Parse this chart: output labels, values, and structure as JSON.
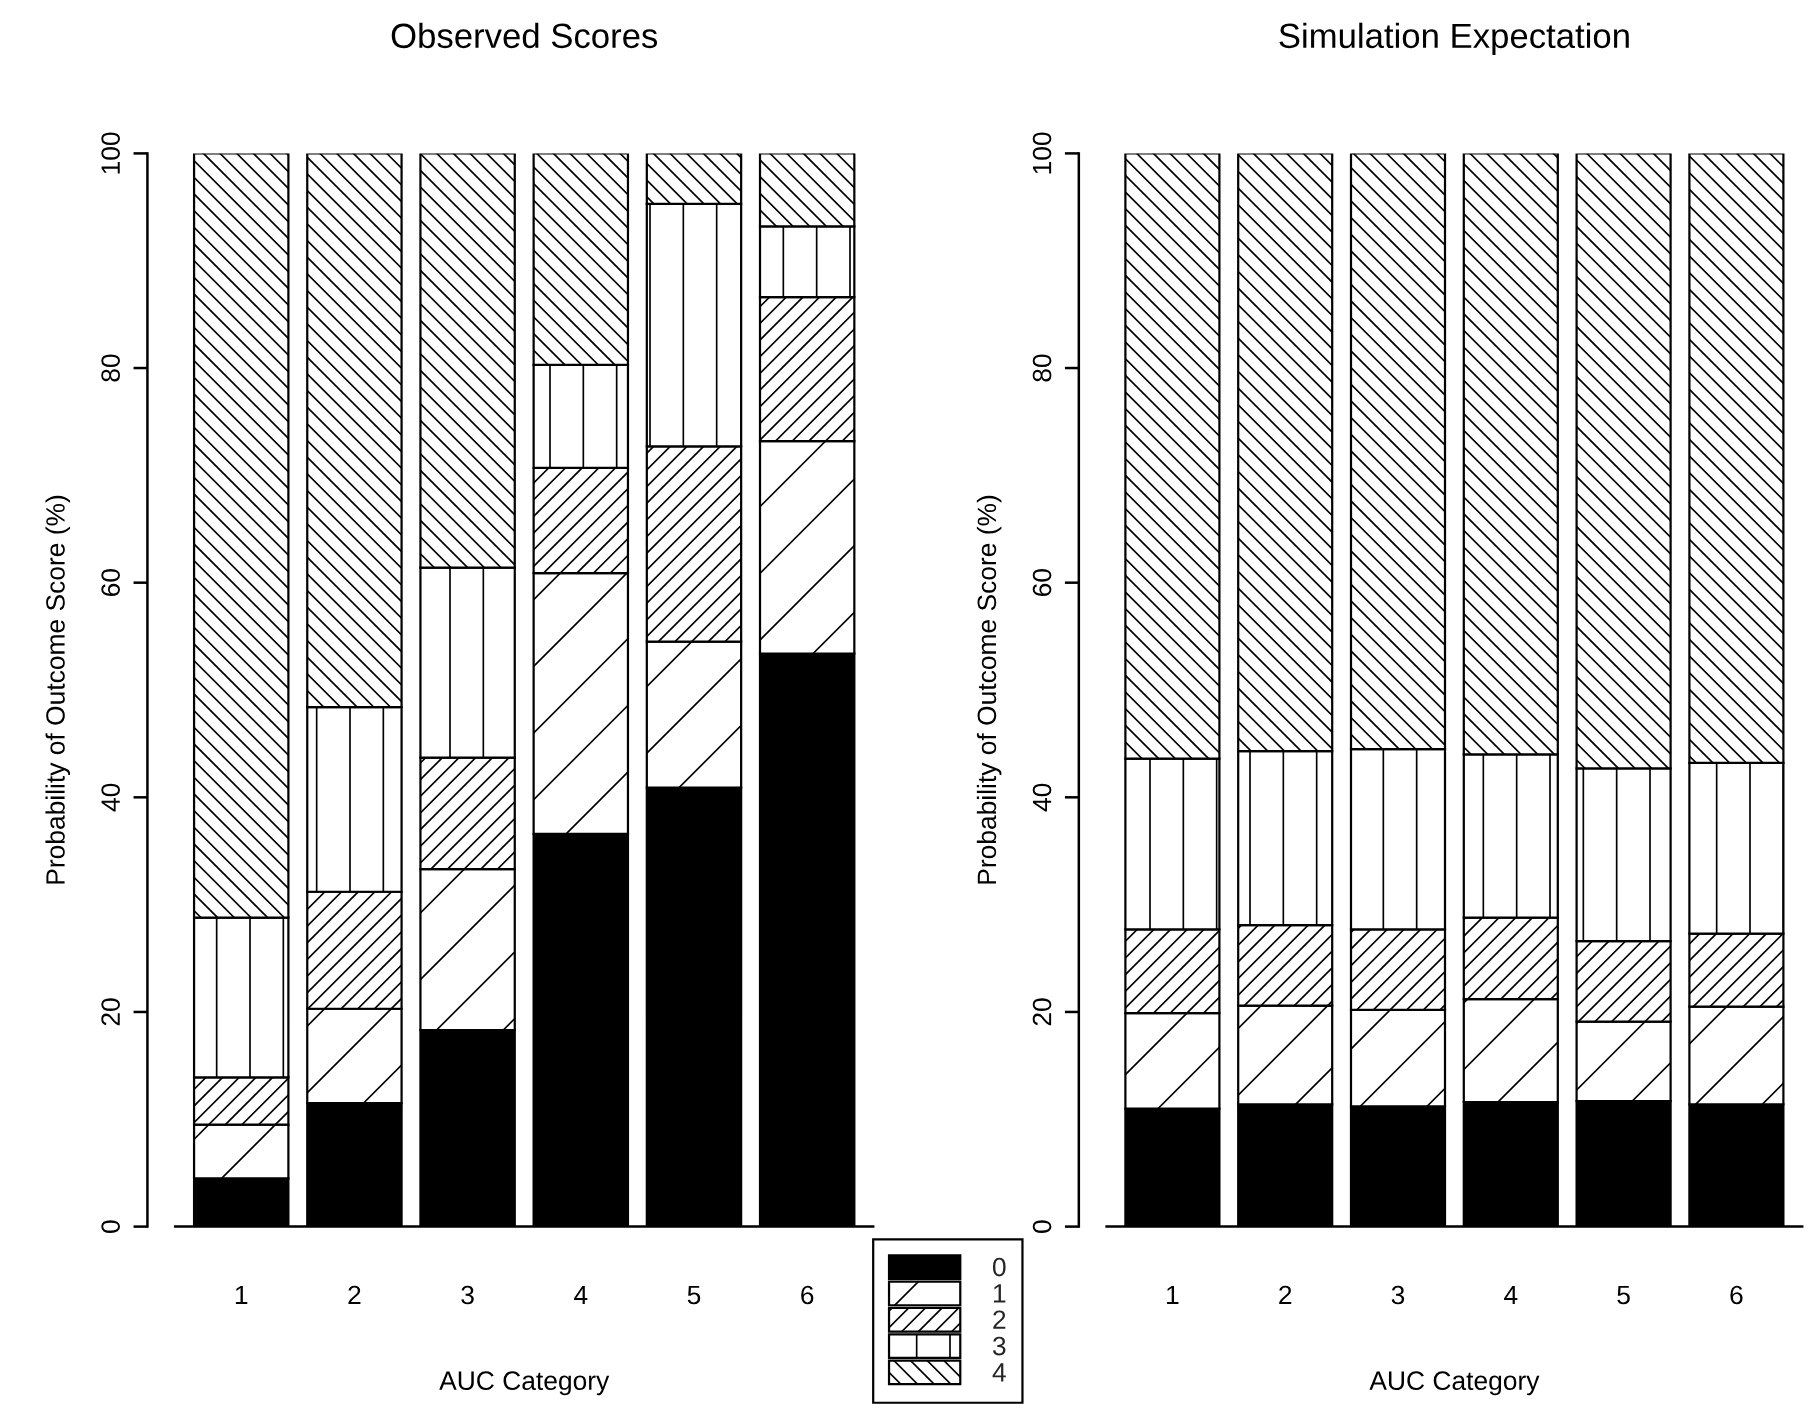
{
  "chart_data": [
    {
      "type": "bar",
      "title": "Observed Scores",
      "xlabel": "AUC Category",
      "ylabel": "Probability of Outcome Score (%)",
      "categories": [
        "1",
        "2",
        "3",
        "4",
        "5",
        "6"
      ],
      "stacked": true,
      "ylim": [
        0,
        100
      ],
      "yticks": [
        0,
        20,
        40,
        60,
        80,
        100
      ],
      "legend": "bottom right",
      "series": [
        {
          "name": "0",
          "color": "#000000",
          "values": [
            4.5,
            11.5,
            18.3,
            36.6,
            40.9,
            53.4
          ]
        },
        {
          "name": "1",
          "color": "#000000",
          "values": [
            5.0,
            8.8,
            15.0,
            24.3,
            13.6,
            19.8
          ]
        },
        {
          "name": "2",
          "color": "#000000",
          "values": [
            4.4,
            10.9,
            10.4,
            9.8,
            18.2,
            13.4
          ]
        },
        {
          "name": "3",
          "color": "#000000",
          "values": [
            14.9,
            17.2,
            17.7,
            9.6,
            22.6,
            6.6
          ]
        },
        {
          "name": "4",
          "color": "#000000",
          "values": [
            71.2,
            51.6,
            38.6,
            19.7,
            4.7,
            6.8
          ]
        }
      ]
    },
    {
      "type": "bar",
      "title": "Simulation Expectation",
      "xlabel": "AUC Category",
      "ylabel": "Probability of Outcome Score (%)",
      "categories": [
        "1",
        "2",
        "3",
        "4",
        "5",
        "6"
      ],
      "stacked": true,
      "ylim": [
        0,
        100
      ],
      "yticks": [
        0,
        20,
        40,
        60,
        80,
        100
      ],
      "series": [
        {
          "name": "0",
          "color": "#000000",
          "values": [
            11.0,
            11.4,
            11.2,
            11.6,
            11.7,
            11.4
          ]
        },
        {
          "name": "1",
          "color": "#000000",
          "values": [
            8.9,
            9.2,
            9.0,
            9.6,
            7.4,
            9.1
          ]
        },
        {
          "name": "2",
          "color": "#000000",
          "values": [
            7.8,
            7.5,
            7.5,
            7.6,
            7.5,
            6.8
          ]
        },
        {
          "name": "3",
          "color": "#000000",
          "values": [
            15.9,
            16.2,
            16.8,
            15.2,
            16.1,
            15.9
          ]
        },
        {
          "name": "4",
          "color": "#000000",
          "values": [
            56.4,
            55.7,
            55.5,
            56.0,
            57.3,
            56.8
          ]
        }
      ]
    }
  ]
}
